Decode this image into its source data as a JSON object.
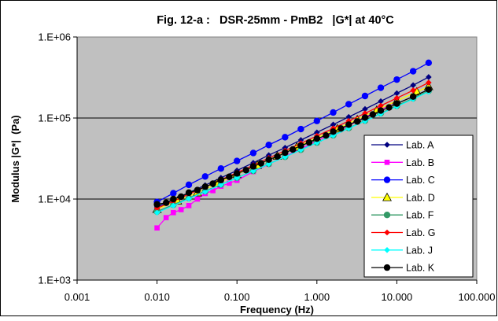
{
  "chart_data": {
    "type": "scatter",
    "title": "Fig. 12-a :   DSR-25mm - PmB2   |G*| at 40°C",
    "xlabel": "Frequency (Hz)",
    "ylabel": "Modulus |G*|  (Pa)",
    "x_scale": "log",
    "y_scale": "log",
    "xlim": [
      0.001,
      100
    ],
    "ylim": [
      1000,
      1000000
    ],
    "x_ticks": [
      "0.001",
      "0.010",
      "0.100",
      "1.000",
      "10.000",
      "100.000"
    ],
    "y_ticks": [
      "1.E+03",
      "1.E+04",
      "1.E+05",
      "1.E+06"
    ],
    "grid": "horizontal major lines",
    "plot_background": "#c0c0c0",
    "legend_position": "right",
    "series": [
      {
        "name": "Lab. A",
        "color": "#000080",
        "marker": "diamond",
        "x": [
          0.01,
          0.016,
          0.025,
          0.04,
          0.063,
          0.1,
          0.16,
          0.25,
          0.4,
          0.63,
          1,
          1.6,
          2.5,
          4,
          6.3,
          10,
          16,
          25
        ],
        "y": [
          8000,
          9800,
          12000,
          14800,
          18300,
          22500,
          28000,
          34800,
          43000,
          53500,
          66500,
          83000,
          103000,
          129000,
          161000,
          202000,
          254000,
          320000
        ]
      },
      {
        "name": "Lab. B",
        "color": "#ff00ff",
        "marker": "square",
        "x": [
          0.01,
          0.013,
          0.016,
          0.02,
          0.025,
          0.032,
          0.04,
          0.05,
          0.063,
          0.08,
          0.1,
          0.16,
          0.25,
          0.4,
          0.63,
          1,
          1.6,
          2.5,
          4,
          6.3,
          10
        ],
        "y": [
          4400,
          5900,
          6800,
          7400,
          8300,
          10000,
          11700,
          12700,
          14400,
          15700,
          17000,
          21800,
          27000,
          33700,
          41800,
          52200,
          65000,
          81000,
          102000,
          128000,
          162000
        ]
      },
      {
        "name": "Lab. C",
        "color": "#0000ff",
        "marker": "circle",
        "x": [
          0.01,
          0.016,
          0.025,
          0.04,
          0.063,
          0.1,
          0.16,
          0.25,
          0.4,
          0.63,
          1,
          1.6,
          2.5,
          4,
          6.3,
          10,
          16,
          25
        ],
        "y": [
          9200,
          11800,
          15000,
          19000,
          23800,
          29500,
          37000,
          46500,
          58000,
          73000,
          92000,
          117000,
          148000,
          187000,
          236000,
          298000,
          378000,
          480000
        ]
      },
      {
        "name": "Lab. D",
        "color": "#ffff00",
        "marker": "triangle",
        "x": [
          0.01,
          0.018,
          0.032,
          0.056,
          0.1,
          0.18,
          0.32,
          0.56,
          1,
          1.8,
          3.2,
          5.6,
          10,
          17.8,
          25
        ],
        "y": [
          7500,
          9500,
          12000,
          15500,
          20200,
          26200,
          34000,
          44000,
          57000,
          74000,
          96000,
          125000,
          163000,
          211000,
          245000
        ]
      },
      {
        "name": "Lab. F",
        "color": "#339966",
        "marker": "circle",
        "x": [
          0.01,
          0.016,
          0.025,
          0.04,
          0.063,
          0.1,
          0.16,
          0.25,
          0.4,
          0.63,
          1,
          1.6,
          2.5,
          4,
          6.3,
          10,
          16,
          25
        ],
        "y": [
          7000,
          8500,
          10300,
          12500,
          15100,
          18300,
          22300,
          27200,
          33200,
          40600,
          49800,
          61200,
          75300,
          92800,
          114500,
          141500,
          175000,
          217000
        ]
      },
      {
        "name": "Lab. G",
        "color": "#ff0000",
        "marker": "diamond",
        "x": [
          0.01,
          0.016,
          0.025,
          0.04,
          0.063,
          0.1,
          0.16,
          0.25,
          0.4,
          0.63,
          1,
          1.6,
          2.5,
          4,
          6.3,
          10,
          16,
          25
        ],
        "y": [
          7700,
          9400,
          11500,
          14100,
          17300,
          21200,
          26100,
          32100,
          39500,
          48700,
          60200,
          74400,
          92100,
          114200,
          141800,
          176300,
          219500,
          273500
        ]
      },
      {
        "name": "Lab. J",
        "color": "#00ffff",
        "marker": "diamond",
        "x": [
          0.01,
          0.016,
          0.025,
          0.04,
          0.063,
          0.1,
          0.16,
          0.25,
          0.4,
          0.63,
          1,
          1.6,
          2.5,
          4,
          6.3,
          10,
          16,
          25
        ],
        "y": [
          6800,
          8300,
          10100,
          12300,
          15000,
          18200,
          22200,
          27100,
          33100,
          40500,
          49600,
          60800,
          74600,
          91700,
          112800,
          138900,
          171300,
          211400
        ]
      },
      {
        "name": "Lab. K",
        "color": "#000000",
        "marker": "circle",
        "x": [
          0.01,
          0.013,
          0.016,
          0.02,
          0.025,
          0.032,
          0.04,
          0.05,
          0.063,
          0.08,
          0.1,
          0.13,
          0.16,
          0.2,
          0.25,
          0.32,
          0.4,
          0.5,
          0.63,
          0.8,
          1,
          1.3,
          1.6,
          2,
          2.5,
          3.2,
          4,
          5,
          6.3,
          8,
          10,
          16,
          25
        ],
        "y": [
          8600,
          9000,
          10000,
          10700,
          12000,
          12900,
          14200,
          15500,
          17200,
          18800,
          20700,
          22700,
          25300,
          27600,
          30700,
          33500,
          37400,
          40900,
          45600,
          49900,
          55700,
          60900,
          67900,
          74300,
          82900,
          90700,
          101200,
          110600,
          123600,
          135000,
          150800,
          184000,
          224500
        ]
      }
    ]
  }
}
